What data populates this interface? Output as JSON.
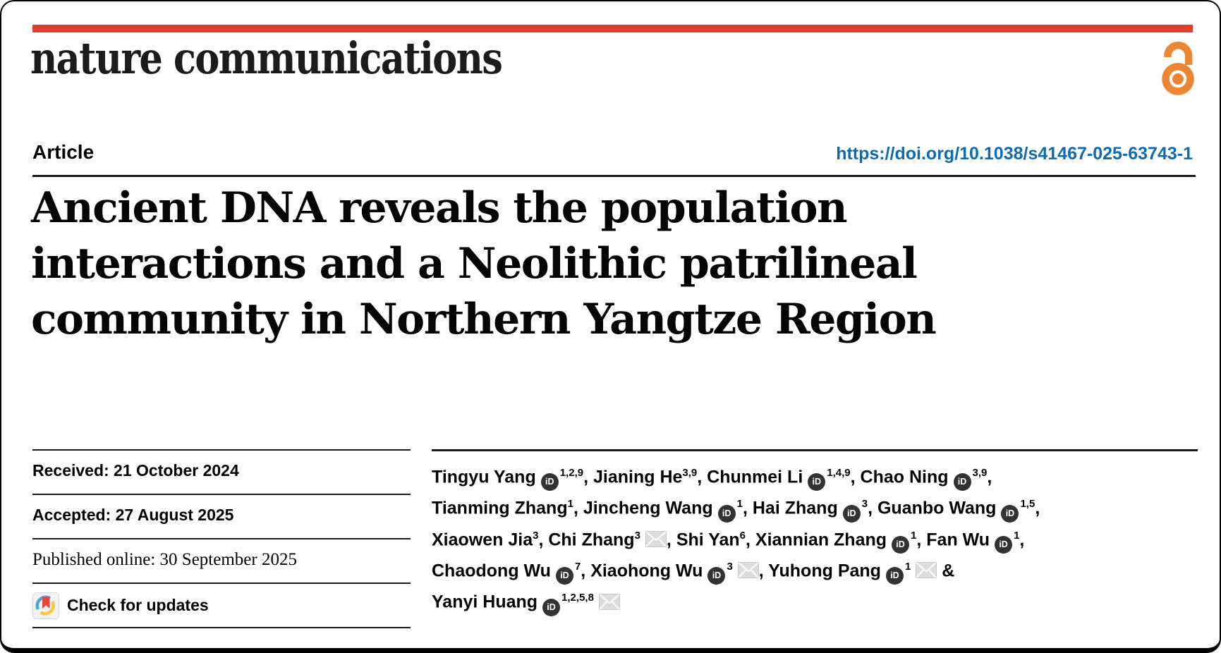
{
  "colors": {
    "banner_red": "#df3e2e",
    "open_access_orange": "#ec8633",
    "doi_link_blue": "#0e6bb0",
    "orcid_icon_dark": "#333333",
    "mail_icon_gray": "#dcdcdc",
    "crossmark_blue": "#46a7e0",
    "crossmark_yellow": "#f5c93a",
    "crossmark_red": "#e5463c"
  },
  "masthead": {
    "journal_name": "nature communications",
    "open_access_icon": "open-padlock"
  },
  "header": {
    "article_label": "Article",
    "doi_url": "https://doi.org/10.1038/s41467-025-63743-1"
  },
  "title_lines": [
    "Ancient DNA reveals the population",
    "interactions and a Neolithic patrilineal",
    "community in Northern Yangtze Region"
  ],
  "meta": {
    "received": "Received: 21 October 2024",
    "accepted": "Accepted: 27 August 2025",
    "published": "Published online: 30 September 2025",
    "check_updates": "Check for updates"
  },
  "authors": {
    "orcid_icon_label": "iD",
    "lines": [
      [
        {
          "text": "Tingyu Yang"
        },
        {
          "icon": "orcid"
        },
        {
          "sup": "1,2,9"
        },
        {
          "text": ", Jianing He"
        },
        {
          "sup": "3,9"
        },
        {
          "text": ", Chunmei Li"
        },
        {
          "icon": "orcid"
        },
        {
          "sup": "1,4,9"
        },
        {
          "text": ", Chao Ning"
        },
        {
          "icon": "orcid"
        },
        {
          "sup": "3,9"
        },
        {
          "text": ","
        }
      ],
      [
        {
          "text": "Tianming Zhang"
        },
        {
          "sup": "1"
        },
        {
          "text": ", Jincheng Wang"
        },
        {
          "icon": "orcid"
        },
        {
          "sup": "1"
        },
        {
          "text": ", Hai Zhang"
        },
        {
          "icon": "orcid"
        },
        {
          "sup": "3"
        },
        {
          "text": ", Guanbo Wang"
        },
        {
          "icon": "orcid"
        },
        {
          "sup": "1,5"
        },
        {
          "text": ","
        }
      ],
      [
        {
          "text": "Xiaowen Jia"
        },
        {
          "sup": "3"
        },
        {
          "text": ", Chi Zhang"
        },
        {
          "sup": "3"
        },
        {
          "icon": "mail"
        },
        {
          "text": ", Shi Yan"
        },
        {
          "sup": "6"
        },
        {
          "text": ", Xiannian Zhang"
        },
        {
          "icon": "orcid"
        },
        {
          "sup": "1"
        },
        {
          "text": ", Fan Wu"
        },
        {
          "icon": "orcid"
        },
        {
          "sup": "1"
        },
        {
          "text": ","
        }
      ],
      [
        {
          "text": "Chaodong Wu"
        },
        {
          "icon": "orcid"
        },
        {
          "sup": "7"
        },
        {
          "text": ", Xiaohong Wu"
        },
        {
          "icon": "orcid"
        },
        {
          "sup": "3"
        },
        {
          "icon": "mail"
        },
        {
          "text": ", Yuhong Pang"
        },
        {
          "icon": "orcid"
        },
        {
          "sup": "1"
        },
        {
          "icon": "mail"
        },
        {
          "text": " &"
        }
      ],
      [
        {
          "text": "Yanyi Huang"
        },
        {
          "icon": "orcid"
        },
        {
          "sup": "1,2,5,8"
        },
        {
          "icon": "mail"
        }
      ]
    ]
  }
}
